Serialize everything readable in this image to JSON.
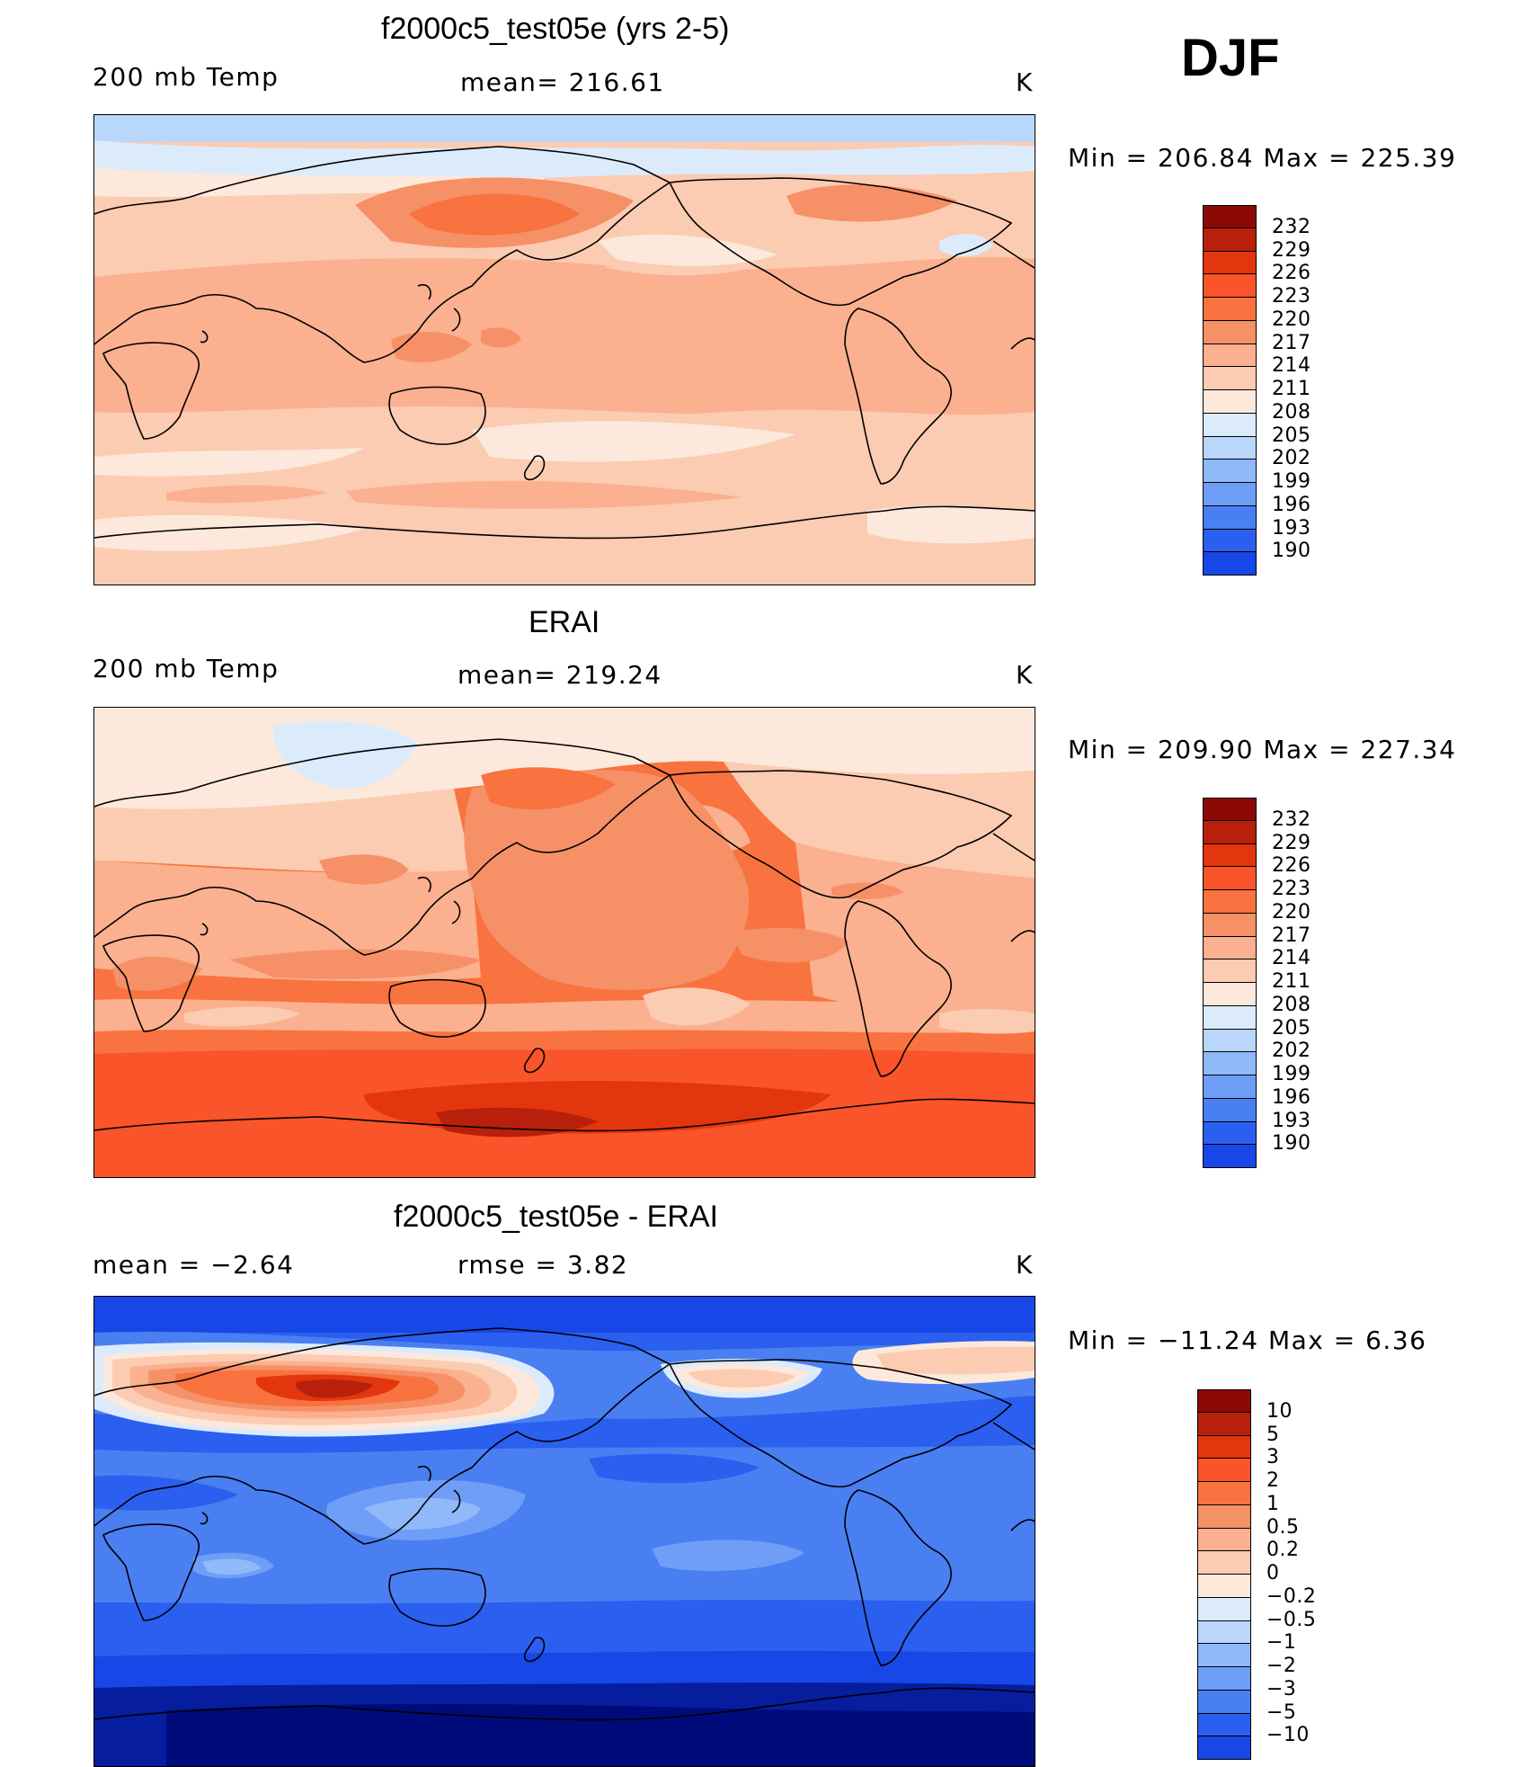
{
  "season": "DJF",
  "panels": [
    {
      "title": "f2000c5_test05e (yrs 2-5)",
      "left_label": "200 mb Temp",
      "center_label": "mean=  216.61",
      "units": "K",
      "minmax": "Min  =  206.84  Max  =  225.39",
      "legend_labels": [
        "232",
        "229",
        "226",
        "223",
        "220",
        "217",
        "214",
        "211",
        "208",
        "205",
        "202",
        "199",
        "196",
        "193",
        "190"
      ]
    },
    {
      "title": "ERAI",
      "left_label": "200 mb Temp",
      "center_label": "mean=  219.24",
      "units": "K",
      "minmax": "Min  =  209.90  Max  =  227.34",
      "legend_labels": [
        "232",
        "229",
        "226",
        "223",
        "220",
        "217",
        "214",
        "211",
        "208",
        "205",
        "202",
        "199",
        "196",
        "193",
        "190"
      ]
    },
    {
      "title": "f2000c5_test05e - ERAI",
      "left_label": "mean  =    −2.64",
      "center_label": "rmse  =     3.82",
      "units": "K",
      "minmax": "Min  =  −11.24  Max  =      6.36",
      "legend_labels": [
        "10",
        "5",
        "3",
        "2",
        "1",
        "0.5",
        "0.2",
        "0",
        "−0.2",
        "−0.5",
        "−1",
        "−2",
        "−3",
        "−5",
        "−10"
      ]
    }
  ],
  "colors": {
    "warm": [
      "#fce9dc",
      "#fbcbb2",
      "#fbb08f",
      "#f69067",
      "#f8733f",
      "#f9542a",
      "#e3360f",
      "#b8200b",
      "#8c0a05"
    ],
    "cool": [
      "#dcebfb",
      "#b9d6fb",
      "#90b9fa",
      "#6f9ef7",
      "#4a7ff2",
      "#2b5ff0",
      "#1747e6",
      "#0c2ec5",
      "#061d9e",
      "#000b7b"
    ],
    "legend_temp": [
      "#8c0a05",
      "#b8200b",
      "#e3360f",
      "#f9542a",
      "#f8733f",
      "#f69067",
      "#fbb08f",
      "#fbcbb2",
      "#fce9dc",
      "#dcebfb",
      "#b9d6fb",
      "#90b9fa",
      "#6f9ef7",
      "#4a7ff2",
      "#2b5ff0",
      "#1747e6",
      "#0c2ec5",
      "#061d9e"
    ],
    "legend_diff": [
      "#8c0a05",
      "#b8200b",
      "#e3360f",
      "#f9542a",
      "#f8733f",
      "#f69067",
      "#fbb08f",
      "#fbcbb2",
      "#fce9dc",
      "#dcebfb",
      "#b9d6fb",
      "#90b9fa",
      "#6f9ef7",
      "#4a7ff2",
      "#2b5ff0",
      "#1747e6",
      "#0c2ec5",
      "#000b7b"
    ]
  }
}
